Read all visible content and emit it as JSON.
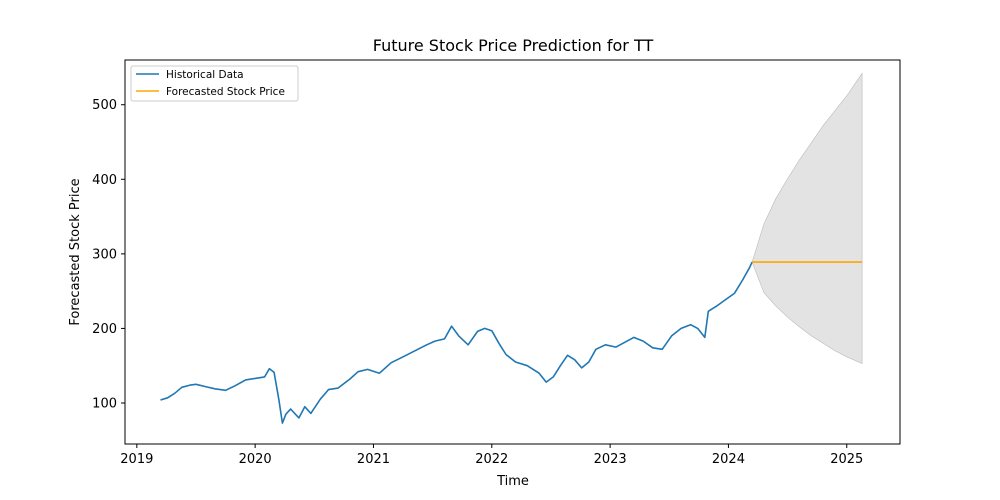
{
  "chart_data": {
    "type": "line",
    "title": "Future Stock Price Prediction for TT",
    "xlabel": "Time",
    "ylabel": "Forecasted Stock Price",
    "xlim": [
      2018.9,
      2025.45
    ],
    "ylim": [
      45,
      560
    ],
    "x_ticks": [
      2019,
      2020,
      2021,
      2022,
      2023,
      2024,
      2025
    ],
    "x_tick_labels": [
      "2019",
      "2020",
      "2021",
      "2022",
      "2023",
      "2024",
      "2025"
    ],
    "y_ticks": [
      100,
      200,
      300,
      400,
      500
    ],
    "y_tick_labels": [
      "100",
      "200",
      "300",
      "400",
      "500"
    ],
    "grid": false,
    "legend_position": "top-left",
    "series": [
      {
        "name": "Historical Data",
        "color": "#1f77b4",
        "points": [
          [
            2019.2,
            104
          ],
          [
            2019.26,
            107
          ],
          [
            2019.32,
            113
          ],
          [
            2019.38,
            121
          ],
          [
            2019.45,
            124
          ],
          [
            2019.5,
            125
          ],
          [
            2019.58,
            122
          ],
          [
            2019.66,
            119
          ],
          [
            2019.75,
            117
          ],
          [
            2019.83,
            123
          ],
          [
            2019.92,
            131
          ],
          [
            2020.0,
            133
          ],
          [
            2020.08,
            135
          ],
          [
            2020.12,
            146
          ],
          [
            2020.16,
            141
          ],
          [
            2020.2,
            105
          ],
          [
            2020.23,
            73
          ],
          [
            2020.26,
            85
          ],
          [
            2020.3,
            92
          ],
          [
            2020.37,
            80
          ],
          [
            2020.42,
            95
          ],
          [
            2020.47,
            86
          ],
          [
            2020.55,
            105
          ],
          [
            2020.62,
            118
          ],
          [
            2020.7,
            120
          ],
          [
            2020.8,
            132
          ],
          [
            2020.87,
            142
          ],
          [
            2020.95,
            145
          ],
          [
            2021.05,
            140
          ],
          [
            2021.15,
            154
          ],
          [
            2021.25,
            162
          ],
          [
            2021.35,
            170
          ],
          [
            2021.45,
            178
          ],
          [
            2021.52,
            183
          ],
          [
            2021.6,
            186
          ],
          [
            2021.66,
            203
          ],
          [
            2021.72,
            190
          ],
          [
            2021.8,
            178
          ],
          [
            2021.88,
            196
          ],
          [
            2021.94,
            200
          ],
          [
            2022.0,
            197
          ],
          [
            2022.06,
            180
          ],
          [
            2022.12,
            165
          ],
          [
            2022.2,
            155
          ],
          [
            2022.3,
            150
          ],
          [
            2022.4,
            140
          ],
          [
            2022.46,
            128
          ],
          [
            2022.52,
            135
          ],
          [
            2022.58,
            150
          ],
          [
            2022.64,
            164
          ],
          [
            2022.7,
            158
          ],
          [
            2022.76,
            147
          ],
          [
            2022.82,
            155
          ],
          [
            2022.88,
            172
          ],
          [
            2022.96,
            178
          ],
          [
            2023.05,
            175
          ],
          [
            2023.12,
            181
          ],
          [
            2023.2,
            188
          ],
          [
            2023.28,
            183
          ],
          [
            2023.36,
            174
          ],
          [
            2023.44,
            172
          ],
          [
            2023.52,
            190
          ],
          [
            2023.6,
            200
          ],
          [
            2023.68,
            205
          ],
          [
            2023.74,
            200
          ],
          [
            2023.8,
            188
          ],
          [
            2023.83,
            223
          ],
          [
            2023.9,
            230
          ],
          [
            2023.97,
            238
          ],
          [
            2024.05,
            247
          ],
          [
            2024.12,
            265
          ],
          [
            2024.18,
            282
          ],
          [
            2024.2,
            289
          ]
        ]
      },
      {
        "name": "Forecasted Stock Price",
        "color": "#ffa500",
        "points": [
          [
            2024.2,
            289
          ],
          [
            2025.13,
            289
          ]
        ]
      }
    ],
    "confidence_band": {
      "color": "#c8c8c8",
      "x": [
        2024.2,
        2024.3,
        2024.4,
        2024.5,
        2024.6,
        2024.7,
        2024.8,
        2024.9,
        2025.0,
        2025.13
      ],
      "upper": [
        289,
        340,
        374,
        401,
        426,
        449,
        472,
        492,
        512,
        542
      ],
      "lower": [
        289,
        248,
        230,
        215,
        202,
        190,
        180,
        170,
        162,
        153
      ]
    }
  }
}
